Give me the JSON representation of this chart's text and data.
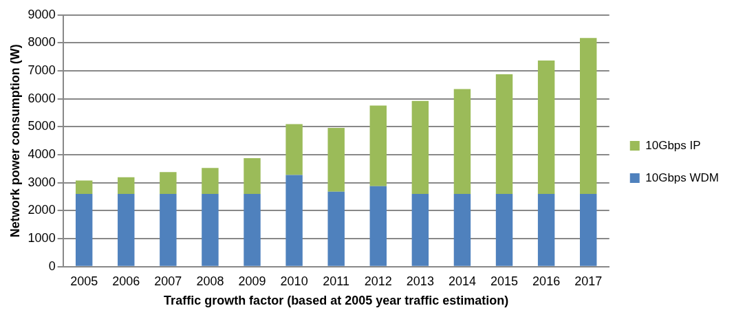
{
  "chart_data": {
    "type": "bar",
    "stacked": true,
    "xlabel": "Traffic growth factor (based at 2005 year traffic estimation)",
    "ylabel": "Network power consumption (W)",
    "categories": [
      "2005",
      "2006",
      "2007",
      "2008",
      "2009",
      "2010",
      "2011",
      "2012",
      "2013",
      "2014",
      "2015",
      "2016",
      "2017"
    ],
    "series": [
      {
        "name": "10Gbps WDM",
        "color": "#4f81bd",
        "values": [
          2600,
          2600,
          2600,
          2600,
          2600,
          3280,
          2680,
          2880,
          2600,
          2600,
          2600,
          2600,
          2600
        ]
      },
      {
        "name": "10Gbps IP",
        "color": "#9bbb59",
        "values": [
          480,
          600,
          780,
          930,
          1280,
          1820,
          2280,
          2880,
          3330,
          3750,
          4280,
          4770,
          5580
        ]
      }
    ],
    "ylim": [
      0,
      9000
    ],
    "yticks": [
      0,
      1000,
      2000,
      3000,
      4000,
      5000,
      6000,
      7000,
      8000,
      9000
    ],
    "grid": "y",
    "legend": "right"
  }
}
